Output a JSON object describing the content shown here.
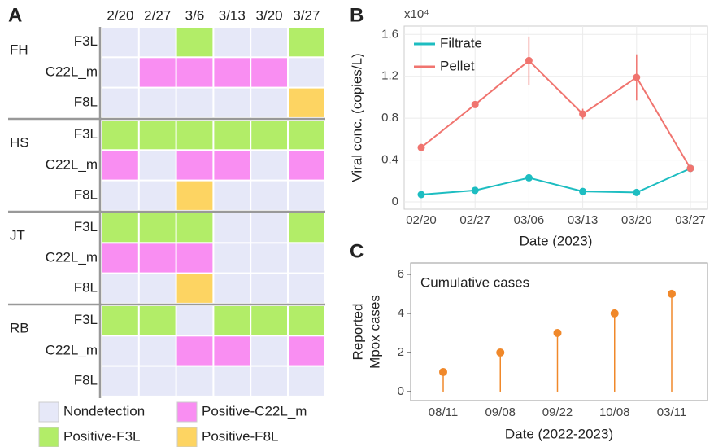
{
  "chart_data": [
    {
      "type": "heatmap",
      "panel_label": "A",
      "columns": [
        "2/20",
        "2/27",
        "3/6",
        "3/13",
        "3/20",
        "3/27"
      ],
      "groups": [
        {
          "name": "FH",
          "rows": [
            "F3L",
            "C22L_m",
            "F8L"
          ],
          "values": [
            [
              0,
              0,
              2,
              0,
              0,
              2
            ],
            [
              0,
              1,
              1,
              1,
              1,
              0
            ],
            [
              0,
              0,
              0,
              0,
              0,
              3
            ]
          ]
        },
        {
          "name": "HS",
          "rows": [
            "F3L",
            "C22L_m",
            "F8L"
          ],
          "values": [
            [
              2,
              2,
              2,
              2,
              2,
              2
            ],
            [
              1,
              0,
              1,
              1,
              0,
              1
            ],
            [
              0,
              0,
              3,
              0,
              0,
              0
            ]
          ]
        },
        {
          "name": "JT",
          "rows": [
            "F3L",
            "C22L_m",
            "F8L"
          ],
          "values": [
            [
              2,
              2,
              2,
              0,
              0,
              2
            ],
            [
              1,
              1,
              1,
              0,
              0,
              0
            ],
            [
              0,
              0,
              3,
              0,
              0,
              0
            ]
          ]
        },
        {
          "name": "RB",
          "rows": [
            "F3L",
            "C22L_m",
            "F8L"
          ],
          "values": [
            [
              2,
              2,
              0,
              2,
              2,
              2
            ],
            [
              0,
              0,
              1,
              1,
              0,
              1
            ],
            [
              0,
              0,
              0,
              0,
              0,
              0
            ]
          ]
        }
      ],
      "legend": [
        {
          "name": "Nondetection",
          "color": "#e6e8f8"
        },
        {
          "name": "Positive-C22L_m",
          "color": "#f98ef2"
        },
        {
          "name": "Positive-F3L",
          "color": "#b2ed68"
        },
        {
          "name": "Positive-F8L",
          "color": "#fdd462"
        }
      ]
    },
    {
      "type": "line",
      "panel_label": "B",
      "scale_note": "x10⁴",
      "categories": [
        "02/20",
        "02/27",
        "03/06",
        "03/13",
        "03/20",
        "03/27"
      ],
      "series": [
        {
          "name": "Filtrate",
          "color": "#1dbdc1",
          "values": [
            0.07,
            0.11,
            0.23,
            0.1,
            0.09,
            0.32
          ]
        },
        {
          "name": "Pellet",
          "color": "#f0746f",
          "values": [
            0.52,
            0.93,
            1.35,
            0.84,
            1.19,
            0.32
          ],
          "errors": [
            0.02,
            0.02,
            0.23,
            0.05,
            0.22,
            0.01
          ]
        }
      ],
      "ylabel": "Viral conc. (copies/L)",
      "xlabel": "Date (2023)",
      "ylim": [
        -0.07,
        1.68
      ],
      "yticks": [
        0,
        0.4,
        0.8,
        1.2,
        1.6
      ],
      "grid": true,
      "legend": "top-left"
    },
    {
      "type": "stem",
      "panel_label": "C",
      "annotation": "Cumulative cases",
      "categories": [
        "08/11",
        "09/08",
        "09/22",
        "10/08",
        "03/11"
      ],
      "values": [
        1,
        2,
        3,
        4,
        5
      ],
      "color": "#f0882a",
      "ylabel": [
        "Reported",
        "Mpox cases"
      ],
      "xlabel": "Date (2022-2023)",
      "ylim": [
        -0.46,
        6.58
      ],
      "yticks": [
        0,
        2,
        4,
        6
      ],
      "grid": false
    }
  ]
}
